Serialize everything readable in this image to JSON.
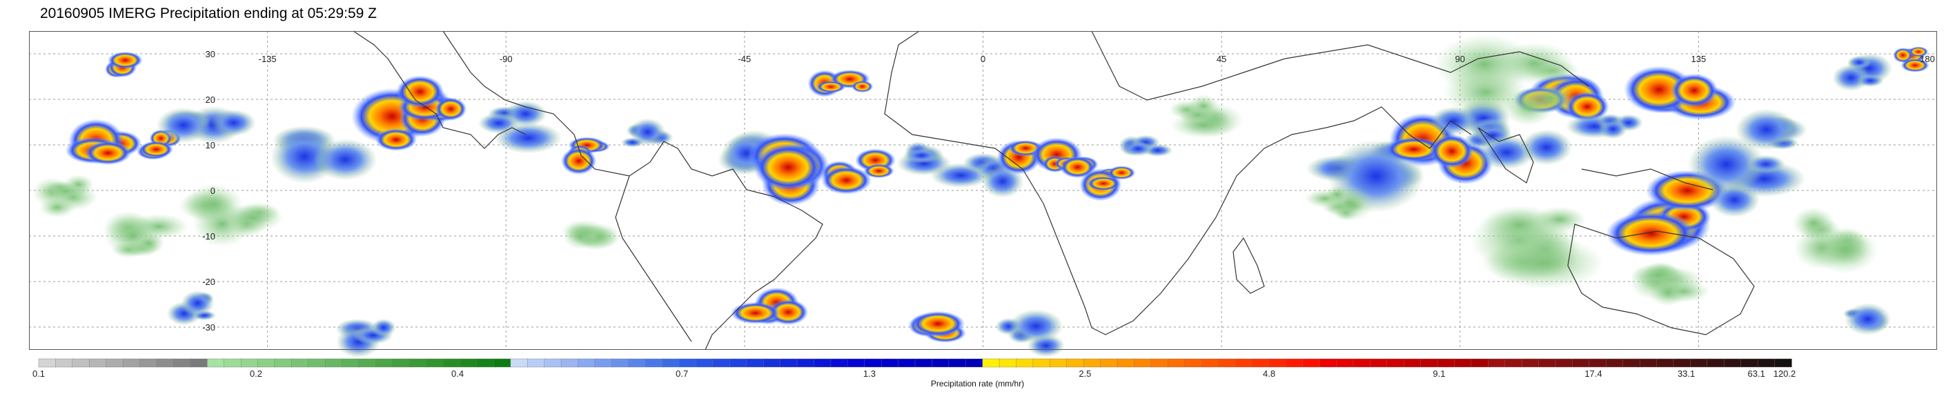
{
  "title": "20160905 IMERG Precipitation ending at 05:29:59 Z",
  "lat_labels": [
    "30",
    "20",
    "10",
    "0",
    "-10",
    "-20",
    "-30"
  ],
  "lon_labels": [
    "-135",
    "-90",
    "-45",
    "0",
    "45",
    "90",
    "135",
    "180"
  ],
  "colorbar": {
    "title": "Precipitation rate (mm/hr)",
    "tick_labels": [
      "0.1",
      "0.2",
      "0.4",
      "0.7",
      "1.3",
      "2.5",
      "4.8",
      "9.1",
      "17.4",
      "33.1",
      "63.1",
      "120.2"
    ],
    "groups": [
      {
        "name": "grey",
        "colors": [
          "#d4d4d4",
          "#cacaca",
          "#c0c0c0",
          "#b6b6b6",
          "#acacac",
          "#a2a2a2",
          "#989898",
          "#8e8e8e",
          "#848484",
          "#7a7a7a"
        ]
      },
      {
        "name": "green",
        "colors": [
          "#a6e2a2",
          "#9ddc98",
          "#94d68f",
          "#8bd086",
          "#82ca7d",
          "#79c474",
          "#70be6b",
          "#67b862",
          "#5eb259",
          "#55ac50",
          "#4ca647",
          "#43a03e",
          "#3a9a35",
          "#31942c",
          "#288e23",
          "#1f881a",
          "#16821a",
          "#0d7c10"
        ]
      },
      {
        "name": "lightblue",
        "colors": [
          "#c9d9f8",
          "#b9cdf6",
          "#a9c1f4",
          "#99b5f2",
          "#89a9f0",
          "#799dee",
          "#6991ec",
          "#5985ea",
          "#4979e8",
          "#396de6"
        ]
      },
      {
        "name": "blue",
        "colors": [
          "#2b5de8",
          "#2754e6",
          "#234be4",
          "#1f42e2",
          "#1b39e0",
          "#1730de",
          "#1327dc",
          "#0f1eda",
          "#0b15d8",
          "#070cd6",
          "#0303d4",
          "#0000d0",
          "#0000cc",
          "#0000c8",
          "#0000c4",
          "#0000c0",
          "#0000bc",
          "#0000b8"
        ]
      },
      {
        "name": "yellow_orange",
        "colors": [
          "#fff200",
          "#ffe600",
          "#ffda00",
          "#ffce00",
          "#ffc200",
          "#ffb600",
          "#ffaa00",
          "#ff9e00",
          "#ff9200",
          "#ff8600",
          "#ff7a00",
          "#ff6e00",
          "#ff6200",
          "#ff5600",
          "#ff4a00",
          "#ff3e00",
          "#ff3200",
          "#ff2600",
          "#ff1a00",
          "#ff0e00"
        ]
      },
      {
        "name": "red",
        "colors": [
          "#ee0000",
          "#e60000",
          "#de0000",
          "#d60000",
          "#ce0000",
          "#c60000",
          "#be0000",
          "#b60000",
          "#ae0000",
          "#a60000"
        ]
      },
      {
        "name": "darkred",
        "colors": [
          "#9e1010",
          "#961010",
          "#8e1010",
          "#861010",
          "#7e1010",
          "#761010",
          "#6e1010",
          "#661010",
          "#5e1010",
          "#561010",
          "#4e1010",
          "#461010",
          "#3e1010",
          "#361010",
          "#2e1010",
          "#261010",
          "#1e1010",
          "#161010"
        ]
      }
    ]
  }
}
